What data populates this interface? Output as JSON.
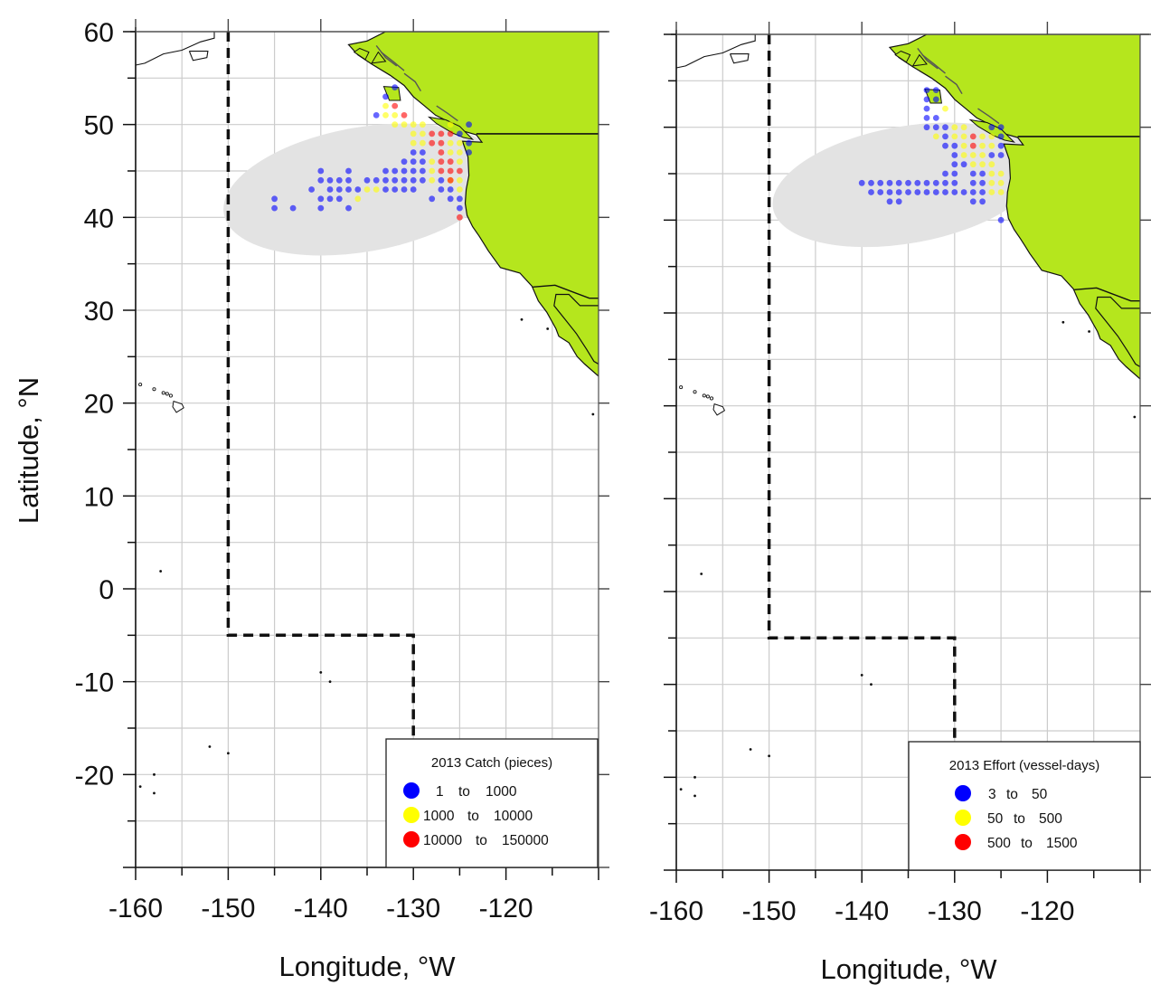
{
  "figure": {
    "ylabel": "Latitude, °N",
    "xlabel_left": "Longitude, °W",
    "xlabel_right": "Longitude, °W"
  },
  "colors": {
    "land": "#b5e61d",
    "grid": "#cccccc",
    "ellipse": "#e3e3e3",
    "blue": "#0000ff",
    "yellow": "#ffff00",
    "red": "#ff0000"
  },
  "axes": {
    "x_ticks": [
      "-160",
      "-150",
      "-140",
      "-130",
      "-120"
    ],
    "y_ticks": [
      "60",
      "50",
      "40",
      "30",
      "20",
      "10",
      "0",
      "-10",
      "-20"
    ]
  },
  "chart_data": [
    {
      "type": "scatter",
      "title": "",
      "xlabel": "Longitude, °W",
      "ylabel": "Latitude, °N",
      "xlim": [
        -160,
        -110
      ],
      "ylim": [
        -30,
        60
      ],
      "legend": {
        "placement": "bottom-right",
        "title": "2013 Catch (pieces)",
        "entries": [
          {
            "label": "1 to 1000",
            "low": "1",
            "high": "1000",
            "color": "#0000ff"
          },
          {
            "label": "1000 to 10000",
            "low": "1000",
            "high": "10000",
            "color": "#ffff00"
          },
          {
            "label": "10000 to 150000",
            "low": "10000",
            "high": "150000",
            "color": "#ff0000"
          }
        ]
      },
      "boundary_line": [
        [
          -150,
          60
        ],
        [
          -150,
          -5
        ],
        [
          -130,
          -5
        ],
        [
          -130,
          -20
        ]
      ],
      "series": [
        {
          "name": "1 to 1000",
          "points": [
            [
              -132,
              54
            ],
            [
              -133,
              53
            ],
            [
              -134,
              51
            ],
            [
              -124,
              50
            ],
            [
              -125,
              49
            ],
            [
              -124,
              48
            ],
            [
              -124,
              47
            ],
            [
              -131,
              46
            ],
            [
              -130,
              46
            ],
            [
              -129,
              46
            ],
            [
              -131,
              45
            ],
            [
              -130,
              45
            ],
            [
              -129,
              45
            ],
            [
              -130,
              47
            ],
            [
              -129,
              47
            ],
            [
              -133,
              45
            ],
            [
              -132,
              45
            ],
            [
              -132,
              44
            ],
            [
              -131,
              44
            ],
            [
              -130,
              44
            ],
            [
              -129,
              44
            ],
            [
              -133,
              44
            ],
            [
              -134,
              44
            ],
            [
              -135,
              44
            ],
            [
              -137,
              44
            ],
            [
              -138,
              44
            ],
            [
              -139,
              44
            ],
            [
              -140,
              44
            ],
            [
              -137,
              45
            ],
            [
              -140,
              45
            ],
            [
              -139,
              43
            ],
            [
              -138,
              43
            ],
            [
              -137,
              43
            ],
            [
              -136,
              43
            ],
            [
              -133,
              43
            ],
            [
              -132,
              43
            ],
            [
              -131,
              43
            ],
            [
              -130,
              43
            ],
            [
              -141,
              43
            ],
            [
              -127,
              44
            ],
            [
              -127,
              43
            ],
            [
              -126,
              43
            ],
            [
              -126,
              42
            ],
            [
              -125,
              41
            ],
            [
              -125,
              42
            ],
            [
              -128,
              42
            ],
            [
              -140,
              42
            ],
            [
              -139,
              42
            ],
            [
              -138,
              42
            ],
            [
              -145,
              42
            ],
            [
              -145,
              41
            ],
            [
              -143,
              41
            ],
            [
              -140,
              41
            ],
            [
              -137,
              41
            ]
          ]
        },
        {
          "name": "1000 to 10000",
          "points": [
            [
              -133,
              52
            ],
            [
              -132,
              51
            ],
            [
              -133,
              51
            ],
            [
              -132,
              50
            ],
            [
              -131,
              50
            ],
            [
              -130,
              50
            ],
            [
              -129,
              50
            ],
            [
              -126,
              50
            ],
            [
              -130,
              49
            ],
            [
              -129,
              49
            ],
            [
              -130,
              48
            ],
            [
              -129,
              48
            ],
            [
              -126,
              48
            ],
            [
              -125,
              48
            ],
            [
              -126,
              47
            ],
            [
              -125,
              47
            ],
            [
              -125,
              46
            ],
            [
              -128,
              46
            ],
            [
              -128,
              45
            ],
            [
              -128,
              44
            ],
            [
              -126,
              44
            ],
            [
              -125,
              44
            ],
            [
              -125,
              43
            ],
            [
              -135,
              43
            ],
            [
              -134,
              43
            ],
            [
              -136,
              42
            ]
          ]
        },
        {
          "name": "10000 to 150000",
          "points": [
            [
              -132,
              52
            ],
            [
              -131,
              51
            ],
            [
              -128,
              49
            ],
            [
              -127,
              49
            ],
            [
              -128,
              48
            ],
            [
              -127,
              48
            ],
            [
              -126,
              49
            ],
            [
              -127,
              47
            ],
            [
              -127,
              46
            ],
            [
              -126,
              46
            ],
            [
              -127,
              45
            ],
            [
              -126,
              45
            ],
            [
              -126,
              44
            ],
            [
              -125,
              45
            ],
            [
              -125,
              40
            ]
          ]
        }
      ]
    },
    {
      "type": "scatter",
      "title": "",
      "xlabel": "Longitude, °W",
      "ylabel": "Latitude, °N",
      "xlim": [
        -160,
        -110
      ],
      "ylim": [
        -30,
        60
      ],
      "legend": {
        "placement": "bottom-right",
        "title": "2013 Effort (vessel-days)",
        "entries": [
          {
            "label": "3 to 50",
            "low": "3",
            "high": "50",
            "color": "#0000ff"
          },
          {
            "label": "50 to 500",
            "low": "50",
            "high": "500",
            "color": "#ffff00"
          },
          {
            "label": "500 to 1500",
            "low": "500",
            "high": "1500",
            "color": "#ff0000"
          }
        ]
      },
      "boundary_line": [
        [
          -150,
          60
        ],
        [
          -150,
          -5
        ],
        [
          -130,
          -5
        ],
        [
          -130,
          -20
        ]
      ],
      "series": [
        {
          "name": "3 to 50",
          "points": [
            [
              -133,
              54
            ],
            [
              -132,
              54
            ],
            [
              -133,
              53
            ],
            [
              -132,
              53
            ],
            [
              -133,
              52
            ],
            [
              -133,
              51
            ],
            [
              -132,
              51
            ],
            [
              -133,
              50
            ],
            [
              -132,
              50
            ],
            [
              -131,
              50
            ],
            [
              -131,
              49
            ],
            [
              -131,
              48
            ],
            [
              -130,
              48
            ],
            [
              -130,
              47
            ],
            [
              -130,
              46
            ],
            [
              -129,
              46
            ],
            [
              -131,
              45
            ],
            [
              -130,
              45
            ],
            [
              -132,
              44
            ],
            [
              -131,
              44
            ],
            [
              -130,
              44
            ],
            [
              -133,
              44
            ],
            [
              -134,
              44
            ],
            [
              -135,
              44
            ],
            [
              -136,
              44
            ],
            [
              -137,
              44
            ],
            [
              -138,
              44
            ],
            [
              -139,
              44
            ],
            [
              -140,
              44
            ],
            [
              -130,
              43
            ],
            [
              -131,
              43
            ],
            [
              -132,
              43
            ],
            [
              -133,
              43
            ],
            [
              -134,
              43
            ],
            [
              -135,
              43
            ],
            [
              -136,
              43
            ],
            [
              -137,
              43
            ],
            [
              -138,
              43
            ],
            [
              -139,
              43
            ],
            [
              -137,
              42
            ],
            [
              -136,
              42
            ],
            [
              -128,
              42
            ],
            [
              -127,
              42
            ],
            [
              -126,
              47
            ],
            [
              -125,
              48
            ],
            [
              -125,
              47
            ],
            [
              -125,
              40
            ],
            [
              -125,
              49
            ],
            [
              -125,
              50
            ],
            [
              -126,
              50
            ],
            [
              -127,
              45
            ],
            [
              -128,
              45
            ],
            [
              -128,
              44
            ],
            [
              -127,
              44
            ],
            [
              -127,
              43
            ],
            [
              -128,
              43
            ],
            [
              -129,
              43
            ]
          ]
        },
        {
          "name": "50 to 500",
          "points": [
            [
              -131,
              52
            ],
            [
              -132,
              49
            ],
            [
              -130,
              49
            ],
            [
              -129,
              49
            ],
            [
              -129,
              48
            ],
            [
              -129,
              47
            ],
            [
              -128,
              47
            ],
            [
              -128,
              46
            ],
            [
              -127,
              46
            ],
            [
              -127,
              48
            ],
            [
              -127,
              47
            ],
            [
              -126,
              48
            ],
            [
              -126,
              46
            ],
            [
              -126,
              45
            ],
            [
              -126,
              44
            ],
            [
              -125,
              45
            ],
            [
              -125,
              44
            ],
            [
              -125,
              43
            ],
            [
              -126,
              43
            ],
            [
              -129,
              50
            ],
            [
              -130,
              50
            ],
            [
              -126,
              49
            ],
            [
              -127,
              49
            ]
          ]
        },
        {
          "name": "500 to 1500",
          "points": [
            [
              -128,
              49
            ],
            [
              -128,
              48
            ]
          ]
        }
      ]
    }
  ]
}
